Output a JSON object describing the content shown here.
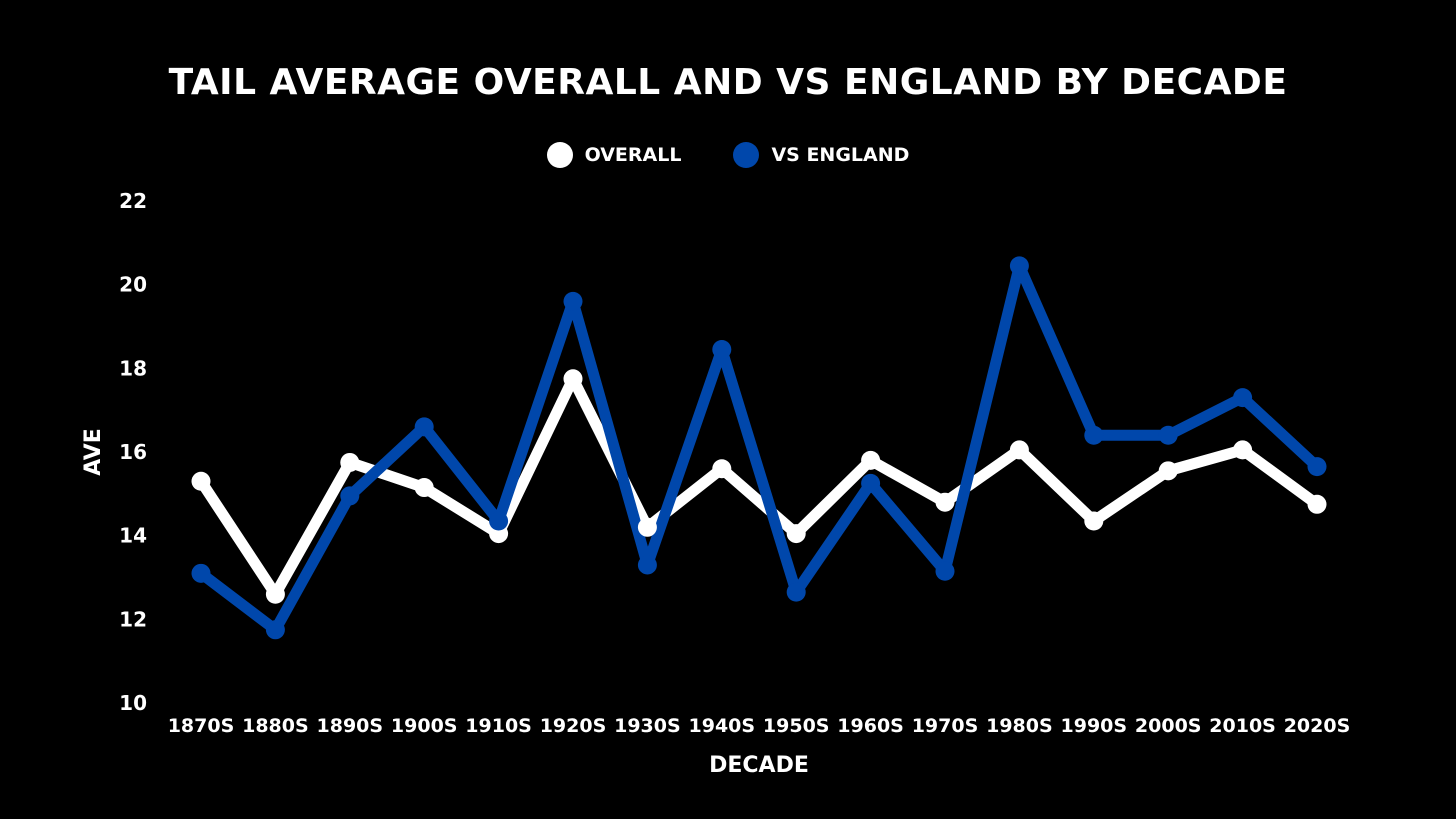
{
  "chart_data": {
    "type": "line",
    "title": "TAIL AVERAGE OVERALL AND VS ENGLAND BY DECADE",
    "xlabel": "DECADE",
    "ylabel": "AVE",
    "ylim": [
      10,
      22
    ],
    "yticks": [
      10,
      12,
      14,
      16,
      18,
      20,
      22
    ],
    "grid": false,
    "legend_position": "top-center",
    "categories": [
      "1870S",
      "1880S",
      "1890S",
      "1900S",
      "1910S",
      "1920S",
      "1930S",
      "1940S",
      "1950S",
      "1960S",
      "1970S",
      "1980S",
      "1990S",
      "2000S",
      "2010S",
      "2020S"
    ],
    "series": [
      {
        "name": "OVERALL",
        "color": "#ffffff",
        "values": [
          15.3,
          12.6,
          15.75,
          15.15,
          14.05,
          17.75,
          14.2,
          15.6,
          14.05,
          15.8,
          14.8,
          16.05,
          14.35,
          15.55,
          16.05,
          14.75
        ]
      },
      {
        "name": "VS ENGLAND",
        "color": "#0047ab",
        "values": [
          13.1,
          11.75,
          14.95,
          16.6,
          14.35,
          19.6,
          13.3,
          18.45,
          12.65,
          15.25,
          13.15,
          20.45,
          16.4,
          16.4,
          17.3,
          15.65
        ]
      }
    ]
  }
}
